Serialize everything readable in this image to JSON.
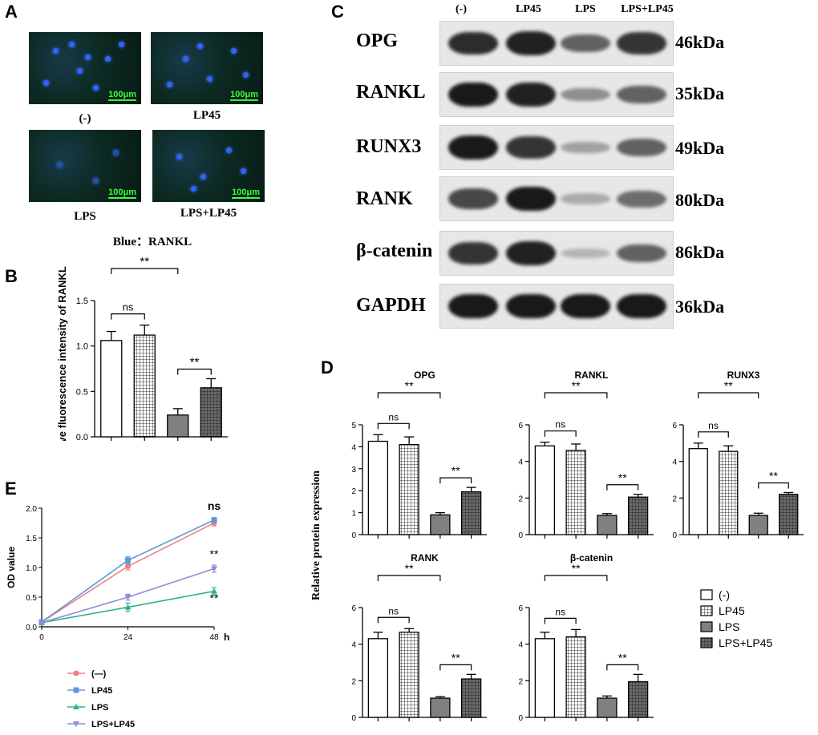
{
  "panels": {
    "A": "A",
    "B": "B",
    "C": "C",
    "D": "D",
    "E": "E"
  },
  "panel_a": {
    "scale_bar": "100μm",
    "labels": [
      "(-)",
      "LP45",
      "LPS",
      "LPS+LP45"
    ],
    "caption": "Blue：RANKL"
  },
  "panel_c": {
    "lanes": [
      "(-)",
      "LP45",
      "LPS",
      "LPS+LP45"
    ],
    "proteins": [
      "OPG",
      "RANKL",
      "RUNX3",
      "RANK",
      "β-catenin",
      "GAPDH"
    ],
    "sizes": [
      "46kDa",
      "35kDa",
      "49kDa",
      "80kDa",
      "86kDa",
      "36kDa"
    ],
    "band_intensity": [
      [
        0.85,
        0.9,
        0.55,
        0.8
      ],
      [
        0.95,
        0.9,
        0.3,
        0.55
      ],
      [
        0.95,
        0.8,
        0.2,
        0.55
      ],
      [
        0.7,
        0.95,
        0.15,
        0.5
      ],
      [
        0.8,
        0.9,
        0.1,
        0.55
      ],
      [
        0.95,
        0.95,
        0.95,
        0.95
      ]
    ]
  },
  "legend": {
    "labels": [
      "(-)",
      "LP45",
      "LPS",
      "LPS+LP45"
    ]
  },
  "legend_e": {
    "labels": [
      "(—)",
      "LP45",
      "LPS",
      "LPS+LP45"
    ],
    "colors": [
      "#f08080",
      "#5b9bd5",
      "#2db38a",
      "#8c8ce0"
    ]
  },
  "chart_data": [
    {
      "id": "B",
      "type": "bar",
      "ylabel": "Relative fluorescence intensity of RANKL",
      "categories": [
        "(-)",
        "LP45",
        "LPS",
        "LPS+LP45"
      ],
      "values": [
        1.06,
        1.12,
        0.24,
        0.54
      ],
      "errors": [
        0.1,
        0.11,
        0.07,
        0.1
      ],
      "ylim": [
        0,
        1.5
      ],
      "yticks": [
        "0.0",
        "0.5",
        "1.0",
        "1.5"
      ],
      "comparisons": [
        {
          "from": 0,
          "to": 2,
          "label": "**"
        },
        {
          "from": 0,
          "to": 1,
          "label": "ns"
        },
        {
          "from": 2,
          "to": 3,
          "label": "**"
        }
      ]
    },
    {
      "id": "D-OPG",
      "type": "bar",
      "title": "OPG",
      "categories": [
        "(-)",
        "LP45",
        "LPS",
        "LPS+LP45"
      ],
      "values": [
        4.25,
        4.1,
        0.9,
        1.95
      ],
      "errors": [
        0.3,
        0.35,
        0.1,
        0.2
      ],
      "ylim": [
        0,
        5
      ],
      "yticks": [
        "0",
        "1",
        "2",
        "3",
        "4",
        "5"
      ],
      "comparisons": [
        {
          "from": 0,
          "to": 2,
          "label": "**"
        },
        {
          "from": 0,
          "to": 1,
          "label": "ns"
        },
        {
          "from": 2,
          "to": 3,
          "label": "**"
        }
      ]
    },
    {
      "id": "D-RANKL",
      "type": "bar",
      "title": "RANKL",
      "categories": [
        "(-)",
        "LP45",
        "LPS",
        "LPS+LP45"
      ],
      "values": [
        4.85,
        4.6,
        1.05,
        2.05
      ],
      "errors": [
        0.2,
        0.35,
        0.1,
        0.15
      ],
      "ylim": [
        0,
        6
      ],
      "yticks": [
        "0",
        "2",
        "4",
        "6"
      ],
      "comparisons": [
        {
          "from": 0,
          "to": 2,
          "label": "**"
        },
        {
          "from": 0,
          "to": 1,
          "label": "ns"
        },
        {
          "from": 2,
          "to": 3,
          "label": "**"
        }
      ]
    },
    {
      "id": "D-RUNX3",
      "type": "bar",
      "title": "RUNX3",
      "categories": [
        "(-)",
        "LP45",
        "LPS",
        "LPS+LP45"
      ],
      "values": [
        4.7,
        4.55,
        1.05,
        2.2
      ],
      "errors": [
        0.3,
        0.3,
        0.12,
        0.1
      ],
      "ylim": [
        0,
        6
      ],
      "yticks": [
        "0",
        "2",
        "4",
        "6"
      ],
      "comparisons": [
        {
          "from": 0,
          "to": 2,
          "label": "**"
        },
        {
          "from": 0,
          "to": 1,
          "label": "ns"
        },
        {
          "from": 2,
          "to": 3,
          "label": "**"
        }
      ]
    },
    {
      "id": "D-RANK",
      "type": "bar",
      "title": "RANK",
      "categories": [
        "(-)",
        "LP45",
        "LPS",
        "LPS+LP45"
      ],
      "values": [
        4.3,
        4.65,
        1.05,
        2.1
      ],
      "errors": [
        0.35,
        0.2,
        0.08,
        0.25
      ],
      "ylim": [
        0,
        6
      ],
      "yticks": [
        "0",
        "2",
        "4",
        "6"
      ],
      "comparisons": [
        {
          "from": 0,
          "to": 2,
          "label": "**"
        },
        {
          "from": 0,
          "to": 1,
          "label": "ns"
        },
        {
          "from": 2,
          "to": 3,
          "label": "**"
        }
      ]
    },
    {
      "id": "D-beta-catenin",
      "type": "bar",
      "title": "β-catenin",
      "categories": [
        "(-)",
        "LP45",
        "LPS",
        "LPS+LP45"
      ],
      "values": [
        4.3,
        4.4,
        1.05,
        1.95
      ],
      "errors": [
        0.35,
        0.4,
        0.12,
        0.4
      ],
      "ylim": [
        0,
        6
      ],
      "yticks": [
        "0",
        "2",
        "4",
        "6"
      ],
      "comparisons": [
        {
          "from": 0,
          "to": 2,
          "label": "**"
        },
        {
          "from": 0,
          "to": 1,
          "label": "ns"
        },
        {
          "from": 2,
          "to": 3,
          "label": "**"
        }
      ]
    },
    {
      "id": "E",
      "type": "line",
      "ylabel": "OD value",
      "x": [
        0,
        24,
        48
      ],
      "xticks": [
        "0",
        "24",
        "48"
      ],
      "xunit": "h",
      "ylim": [
        0,
        2.0
      ],
      "yticks": [
        "0.0",
        "0.5",
        "1.0",
        "1.5",
        "2.0"
      ],
      "series": [
        {
          "name": "(—)",
          "values": [
            0.08,
            1.02,
            1.75
          ],
          "errors": [
            0.02,
            0.06,
            0.05
          ]
        },
        {
          "name": "LP45",
          "values": [
            0.08,
            1.12,
            1.8
          ],
          "errors": [
            0.02,
            0.06,
            0.04
          ]
        },
        {
          "name": "LPS",
          "values": [
            0.07,
            0.33,
            0.6
          ],
          "errors": [
            0.02,
            0.07,
            0.06
          ]
        },
        {
          "name": "LPS+LP45",
          "values": [
            0.07,
            0.5,
            0.98
          ],
          "errors": [
            0.02,
            0.05,
            0.06
          ]
        }
      ],
      "annotations": [
        "ns",
        "**",
        "**"
      ]
    }
  ],
  "panel_d_ylabel": "Relative protein expression"
}
